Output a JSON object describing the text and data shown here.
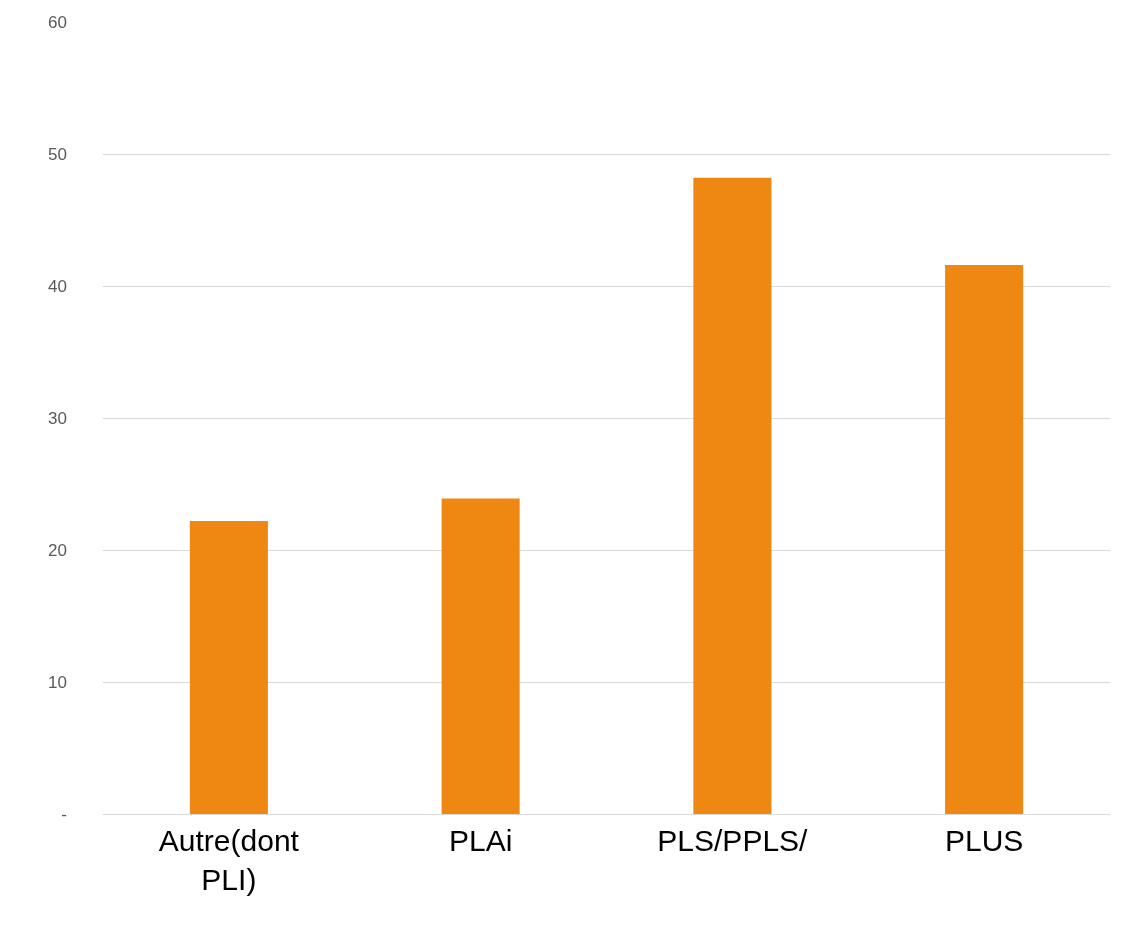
{
  "chart_data": {
    "type": "bar",
    "categories": [
      "Autre(dont PLI)",
      "PLAi",
      "PLS/PPLS/",
      "PLUS"
    ],
    "values": [
      22.2,
      23.9,
      48.2,
      41.6
    ],
    "color": "#ee8812",
    "ylim": [
      0,
      60
    ],
    "yticks": [
      {
        "value": 0,
        "label": "-"
      },
      10,
      20,
      30,
      40,
      50,
      60
    ],
    "grid": "y",
    "legend": false
  }
}
